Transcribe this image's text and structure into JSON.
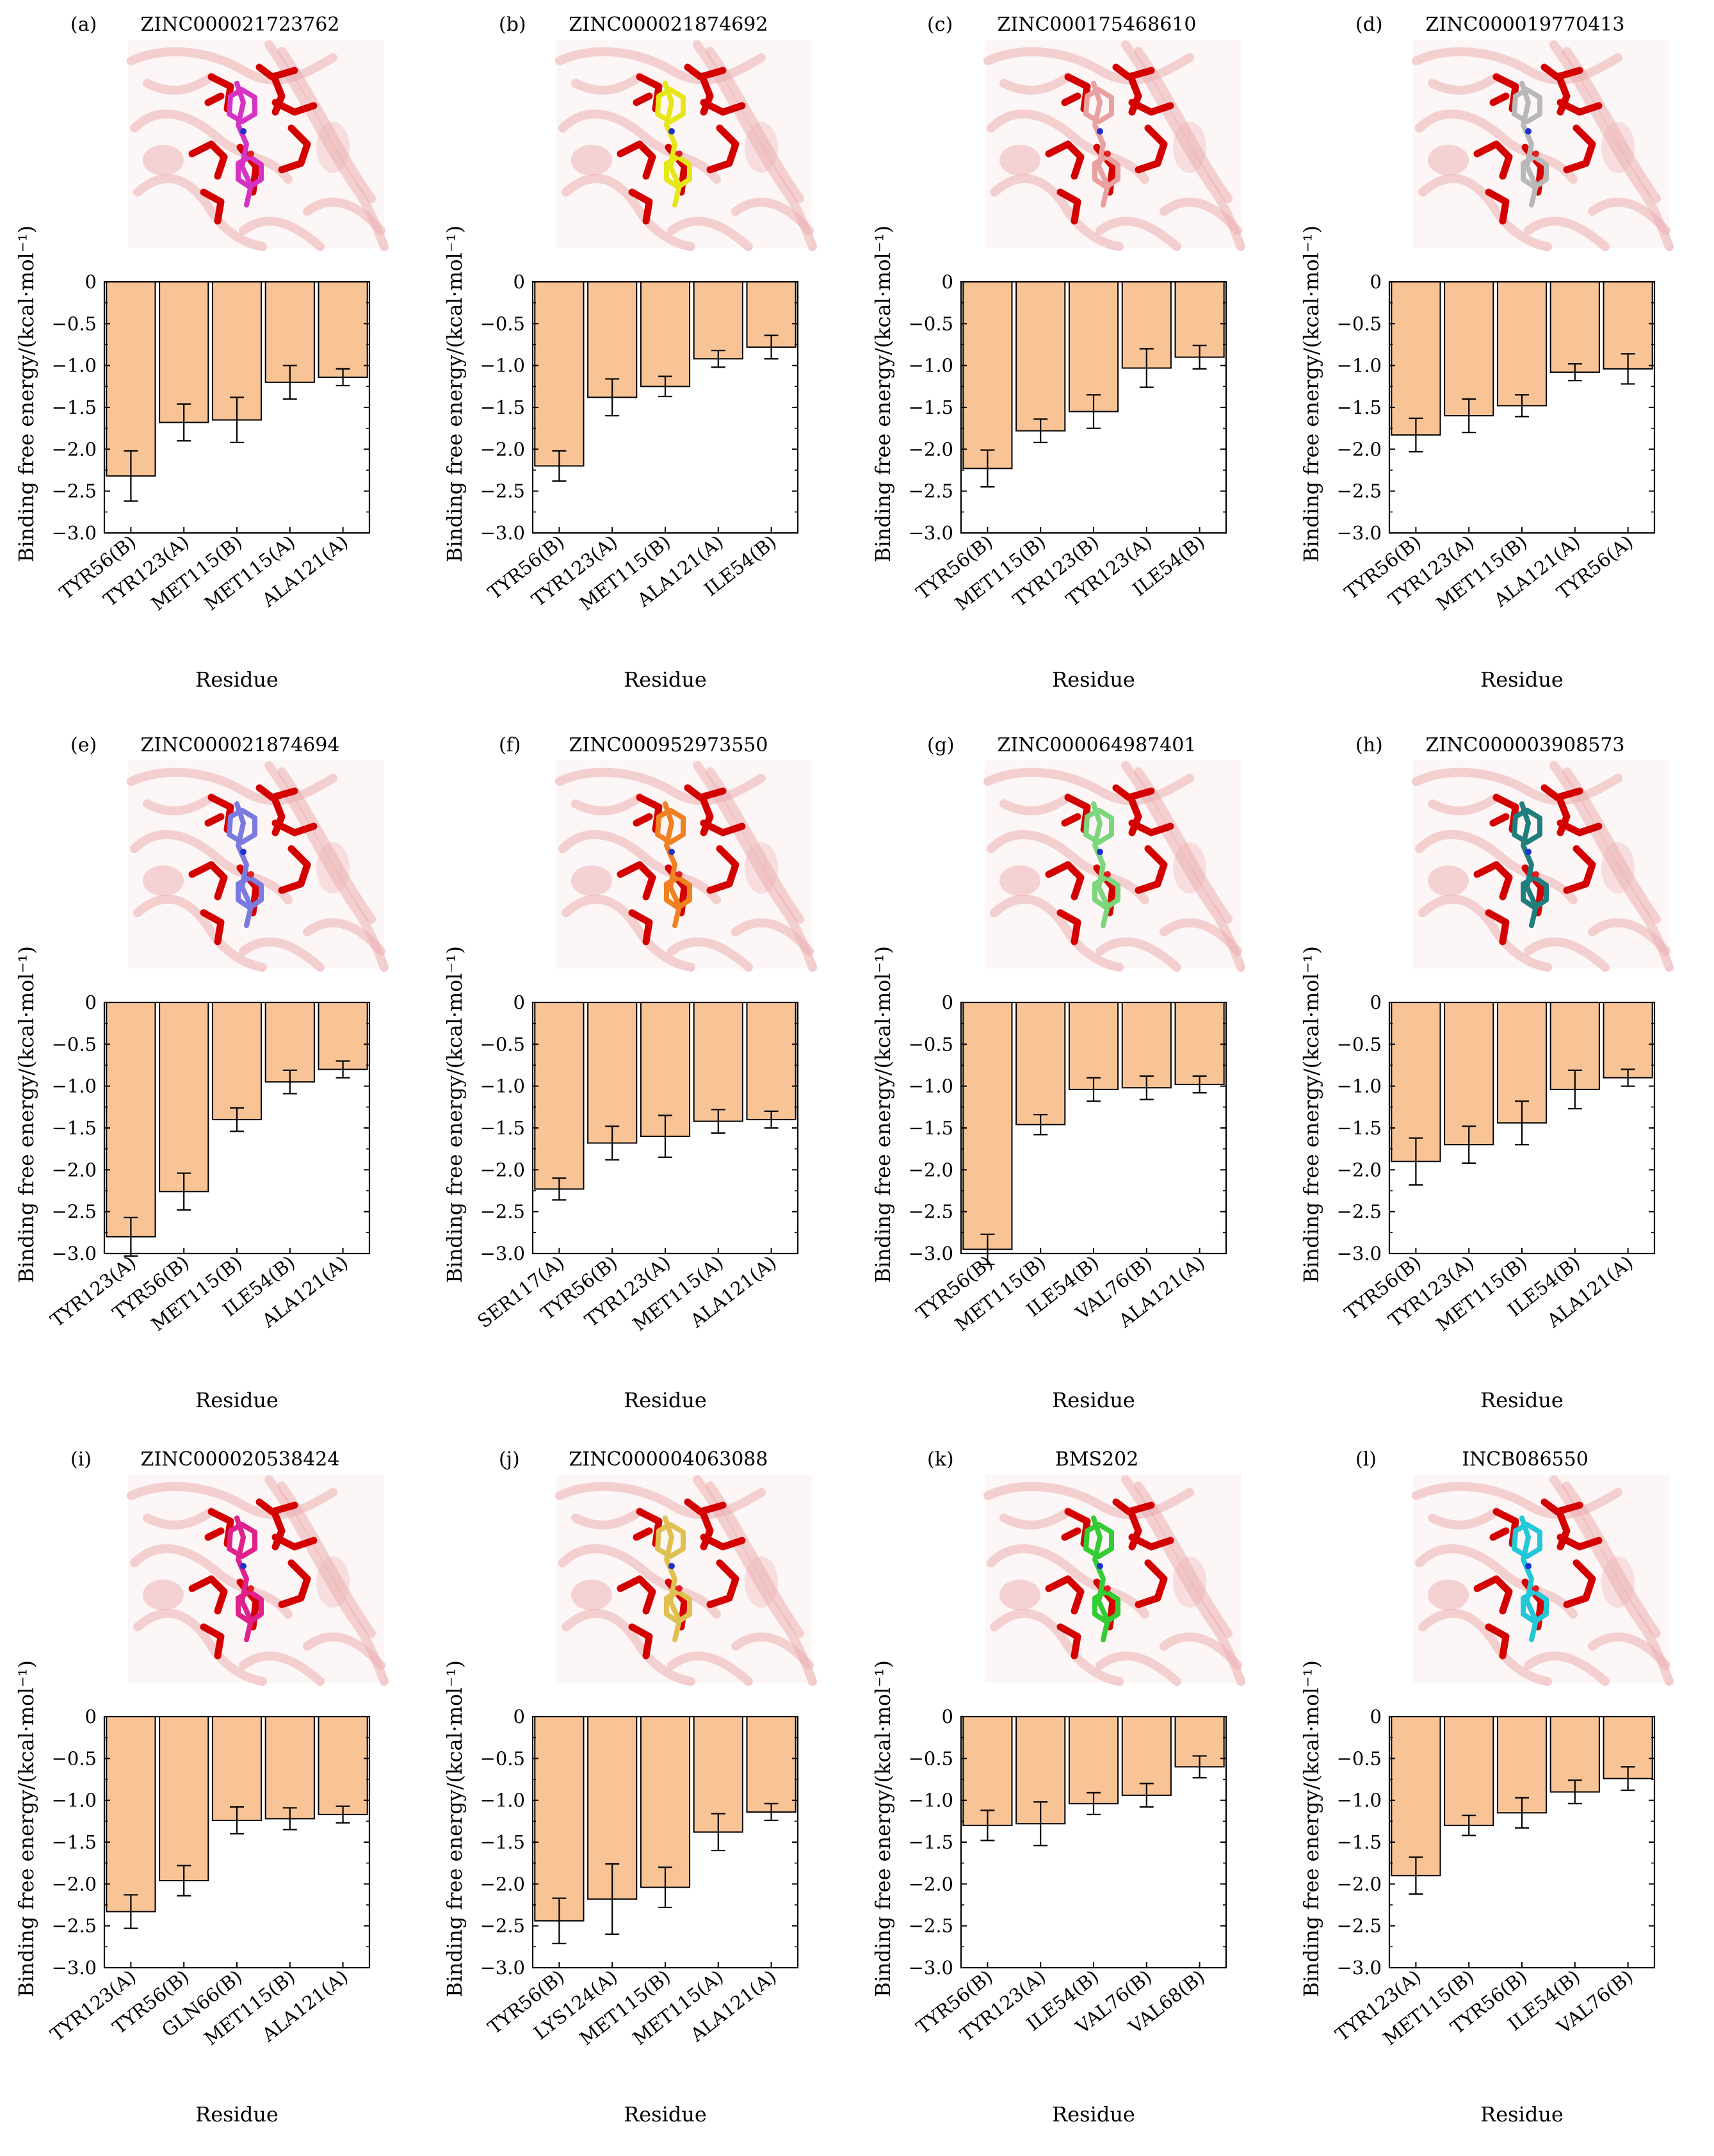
{
  "style": {
    "bar_fill": "#f8c496",
    "bar_stroke": "#000000",
    "structure_tint": "#e8a0a4",
    "structure_background": "#f6dcdc",
    "residue_color": "#d40000"
  },
  "chart_data": [
    {
      "type": "bar",
      "panel_label": "(a)",
      "title": "ZINC000021723762",
      "ligand_color": "#d633c4",
      "categories": [
        "TYR56(B)",
        "TYR123(A)",
        "MET115(B)",
        "MET115(A)",
        "ALA121(A)"
      ],
      "values": [
        -2.32,
        -1.68,
        -1.65,
        -1.2,
        -1.14
      ],
      "errors": [
        0.3,
        0.22,
        0.27,
        0.2,
        0.1
      ],
      "xlabel": "Residue",
      "ylabel": "Binding free energy/(kcal·mol⁻¹)",
      "ylim": [
        -3.0,
        0
      ],
      "yticks": [
        "0",
        "−0.5",
        "−1.0",
        "−1.5",
        "−2.0",
        "−2.5",
        "−3.0"
      ],
      "grid": false
    },
    {
      "type": "bar",
      "panel_label": "(b)",
      "title": "ZINC000021874692",
      "ligand_color": "#e6e619",
      "categories": [
        "TYR56(B)",
        "TYR123(A)",
        "MET115(B)",
        "ALA121(A)",
        "ILE54(B)"
      ],
      "values": [
        -2.2,
        -1.38,
        -1.25,
        -0.92,
        -0.78
      ],
      "errors": [
        0.18,
        0.22,
        0.12,
        0.1,
        0.14
      ],
      "xlabel": "Residue",
      "ylabel": "Binding free energy/(kcal·mol⁻¹)",
      "ylim": [
        -3.0,
        0
      ],
      "yticks": [
        "0",
        "−0.5",
        "−1.0",
        "−1.5",
        "−2.0",
        "−2.5",
        "−3.0"
      ],
      "grid": false
    },
    {
      "type": "bar",
      "panel_label": "(c)",
      "title": "ZINC000175468610",
      "ligand_color": "#e8a0a0",
      "categories": [
        "TYR56(B)",
        "MET115(B)",
        "TYR123(B)",
        "TYR123(A)",
        "ILE54(B)"
      ],
      "values": [
        -2.23,
        -1.78,
        -1.55,
        -1.03,
        -0.9
      ],
      "errors": [
        0.22,
        0.14,
        0.2,
        0.23,
        0.14
      ],
      "xlabel": "Residue",
      "ylabel": "Binding free energy/(kcal·mol⁻¹)",
      "ylim": [
        -3.0,
        0
      ],
      "yticks": [
        "0",
        "−0.5",
        "−1.0",
        "−1.5",
        "−2.0",
        "−2.5",
        "−3.0"
      ],
      "grid": false
    },
    {
      "type": "bar",
      "panel_label": "(d)",
      "title": "ZINC000019770413",
      "ligand_color": "#b8b8b8",
      "categories": [
        "TYR56(B)",
        "TYR123(A)",
        "MET115(B)",
        "ALA121(A)",
        "TYR56(A)"
      ],
      "values": [
        -1.83,
        -1.6,
        -1.48,
        -1.08,
        -1.04
      ],
      "errors": [
        0.2,
        0.2,
        0.13,
        0.1,
        0.18
      ],
      "xlabel": "Residue",
      "ylabel": "Binding free energy/(kcal·mol⁻¹)",
      "ylim": [
        -3.0,
        0
      ],
      "yticks": [
        "0",
        "−0.5",
        "−1.0",
        "−1.5",
        "−2.0",
        "−2.5",
        "−3.0"
      ],
      "grid": false
    },
    {
      "type": "bar",
      "panel_label": "(e)",
      "title": "ZINC000021874694",
      "ligand_color": "#7a7ae0",
      "categories": [
        "TYR123(A)",
        "TYR56(B)",
        "MET115(B)",
        "ILE54(B)",
        "ALA121(A)"
      ],
      "values": [
        -2.8,
        -2.26,
        -1.4,
        -0.95,
        -0.8
      ],
      "errors": [
        0.23,
        0.22,
        0.14,
        0.14,
        0.1
      ],
      "xlabel": "Residue",
      "ylabel": "Binding free energy/(kcal·mol⁻¹)",
      "ylim": [
        -3.0,
        0
      ],
      "yticks": [
        "0",
        "−0.5",
        "−1.0",
        "−1.5",
        "−2.0",
        "−2.5",
        "−3.0"
      ],
      "grid": false
    },
    {
      "type": "bar",
      "panel_label": "(f)",
      "title": "ZINC000952973550",
      "ligand_color": "#f08020",
      "categories": [
        "SER117(A)",
        "TYR56(B)",
        "TYR123(A)",
        "MET115(A)",
        "ALA121(A)"
      ],
      "values": [
        -2.23,
        -1.68,
        -1.6,
        -1.42,
        -1.4
      ],
      "errors": [
        0.13,
        0.2,
        0.25,
        0.14,
        0.1
      ],
      "xlabel": "Residue",
      "ylabel": "Binding free energy/(kcal·mol⁻¹)",
      "ylim": [
        -3.0,
        0
      ],
      "yticks": [
        "0",
        "−0.5",
        "−1.0",
        "−1.5",
        "−2.0",
        "−2.5",
        "−3.0"
      ],
      "grid": false
    },
    {
      "type": "bar",
      "panel_label": "(g)",
      "title": "ZINC000064987401",
      "ligand_color": "#7cd67c",
      "categories": [
        "TYR56(B)",
        "MET115(B)",
        "ILE54(B)",
        "VAL76(B)",
        "ALA121(A)"
      ],
      "values": [
        -2.95,
        -1.46,
        -1.04,
        -1.02,
        -0.98
      ],
      "errors": [
        0.18,
        0.12,
        0.14,
        0.14,
        0.1
      ],
      "xlabel": "Residue",
      "ylabel": "Binding free energy/(kcal·mol⁻¹)",
      "ylim": [
        -3.0,
        0
      ],
      "yticks": [
        "0",
        "−0.5",
        "−1.0",
        "−1.5",
        "−2.0",
        "−2.5",
        "−3.0"
      ],
      "grid": false
    },
    {
      "type": "bar",
      "panel_label": "(h)",
      "title": "ZINC000003908573",
      "ligand_color": "#1f7f7f",
      "categories": [
        "TYR56(B)",
        "TYR123(A)",
        "MET115(B)",
        "ILE54(B)",
        "ALA121(A)"
      ],
      "values": [
        -1.9,
        -1.7,
        -1.44,
        -1.04,
        -0.9
      ],
      "errors": [
        0.28,
        0.22,
        0.26,
        0.23,
        0.1
      ],
      "xlabel": "Residue",
      "ylabel": "Binding free energy/(kcal·mol⁻¹)",
      "ylim": [
        -3.0,
        0
      ],
      "yticks": [
        "0",
        "−0.5",
        "−1.0",
        "−1.5",
        "−2.0",
        "−2.5",
        "−3.0"
      ],
      "grid": false
    },
    {
      "type": "bar",
      "panel_label": "(i)",
      "title": "ZINC000020538424",
      "ligand_color": "#e0208c",
      "categories": [
        "TYR123(A)",
        "TYR56(B)",
        "GLN66(B)",
        "MET115(B)",
        "ALA121(A)"
      ],
      "values": [
        -2.33,
        -1.96,
        -1.24,
        -1.22,
        -1.17
      ],
      "errors": [
        0.2,
        0.18,
        0.16,
        0.13,
        0.1
      ],
      "xlabel": "Residue",
      "ylabel": "Binding free energy/(kcal·mol⁻¹)",
      "ylim": [
        -3.0,
        0
      ],
      "yticks": [
        "0",
        "−0.5",
        "−1.0",
        "−1.5",
        "−2.0",
        "−2.5",
        "−3.0"
      ],
      "grid": false
    },
    {
      "type": "bar",
      "panel_label": "(j)",
      "title": "ZINC000004063088",
      "ligand_color": "#e0c050",
      "categories": [
        "TYR56(B)",
        "LYS124(A)",
        "MET115(B)",
        "MET115(A)",
        "ALA121(A)"
      ],
      "values": [
        -2.44,
        -2.18,
        -2.04,
        -1.38,
        -1.14
      ],
      "errors": [
        0.27,
        0.42,
        0.24,
        0.22,
        0.1
      ],
      "xlabel": "Residue",
      "ylabel": "Binding free energy/(kcal·mol⁻¹)",
      "ylim": [
        -3.0,
        0
      ],
      "yticks": [
        "0",
        "−0.5",
        "−1.0",
        "−1.5",
        "−2.0",
        "−2.5",
        "−3.0"
      ],
      "grid": false
    },
    {
      "type": "bar",
      "panel_label": "(k)",
      "title": "BMS202",
      "ligand_color": "#33cc33",
      "categories": [
        "TYR56(B)",
        "TYR123(A)",
        "ILE54(B)",
        "VAL76(B)",
        "VAL68(B)"
      ],
      "values": [
        -1.3,
        -1.28,
        -1.04,
        -0.94,
        -0.6
      ],
      "errors": [
        0.18,
        0.26,
        0.13,
        0.14,
        0.13
      ],
      "xlabel": "Residue",
      "ylabel": "Binding free energy/(kcal·mol⁻¹)",
      "ylim": [
        -3.0,
        0
      ],
      "yticks": [
        "0",
        "−0.5",
        "−1.0",
        "−1.5",
        "−2.0",
        "−2.5",
        "−3.0"
      ],
      "grid": false
    },
    {
      "type": "bar",
      "panel_label": "(l)",
      "title": "INCB086550",
      "ligand_color": "#22c8d8",
      "categories": [
        "TYR123(A)",
        "MET115(B)",
        "TYR56(B)",
        "ILE54(B)",
        "VAL76(B)"
      ],
      "values": [
        -1.9,
        -1.3,
        -1.15,
        -0.9,
        -0.74
      ],
      "errors": [
        0.22,
        0.12,
        0.18,
        0.14,
        0.14
      ],
      "xlabel": "Residue",
      "ylabel": "Binding free energy/(kcal·mol⁻¹)",
      "ylim": [
        -3.0,
        0
      ],
      "yticks": [
        "0",
        "−0.5",
        "−1.0",
        "−1.5",
        "−2.0",
        "−2.5",
        "−3.0"
      ],
      "grid": false
    }
  ]
}
